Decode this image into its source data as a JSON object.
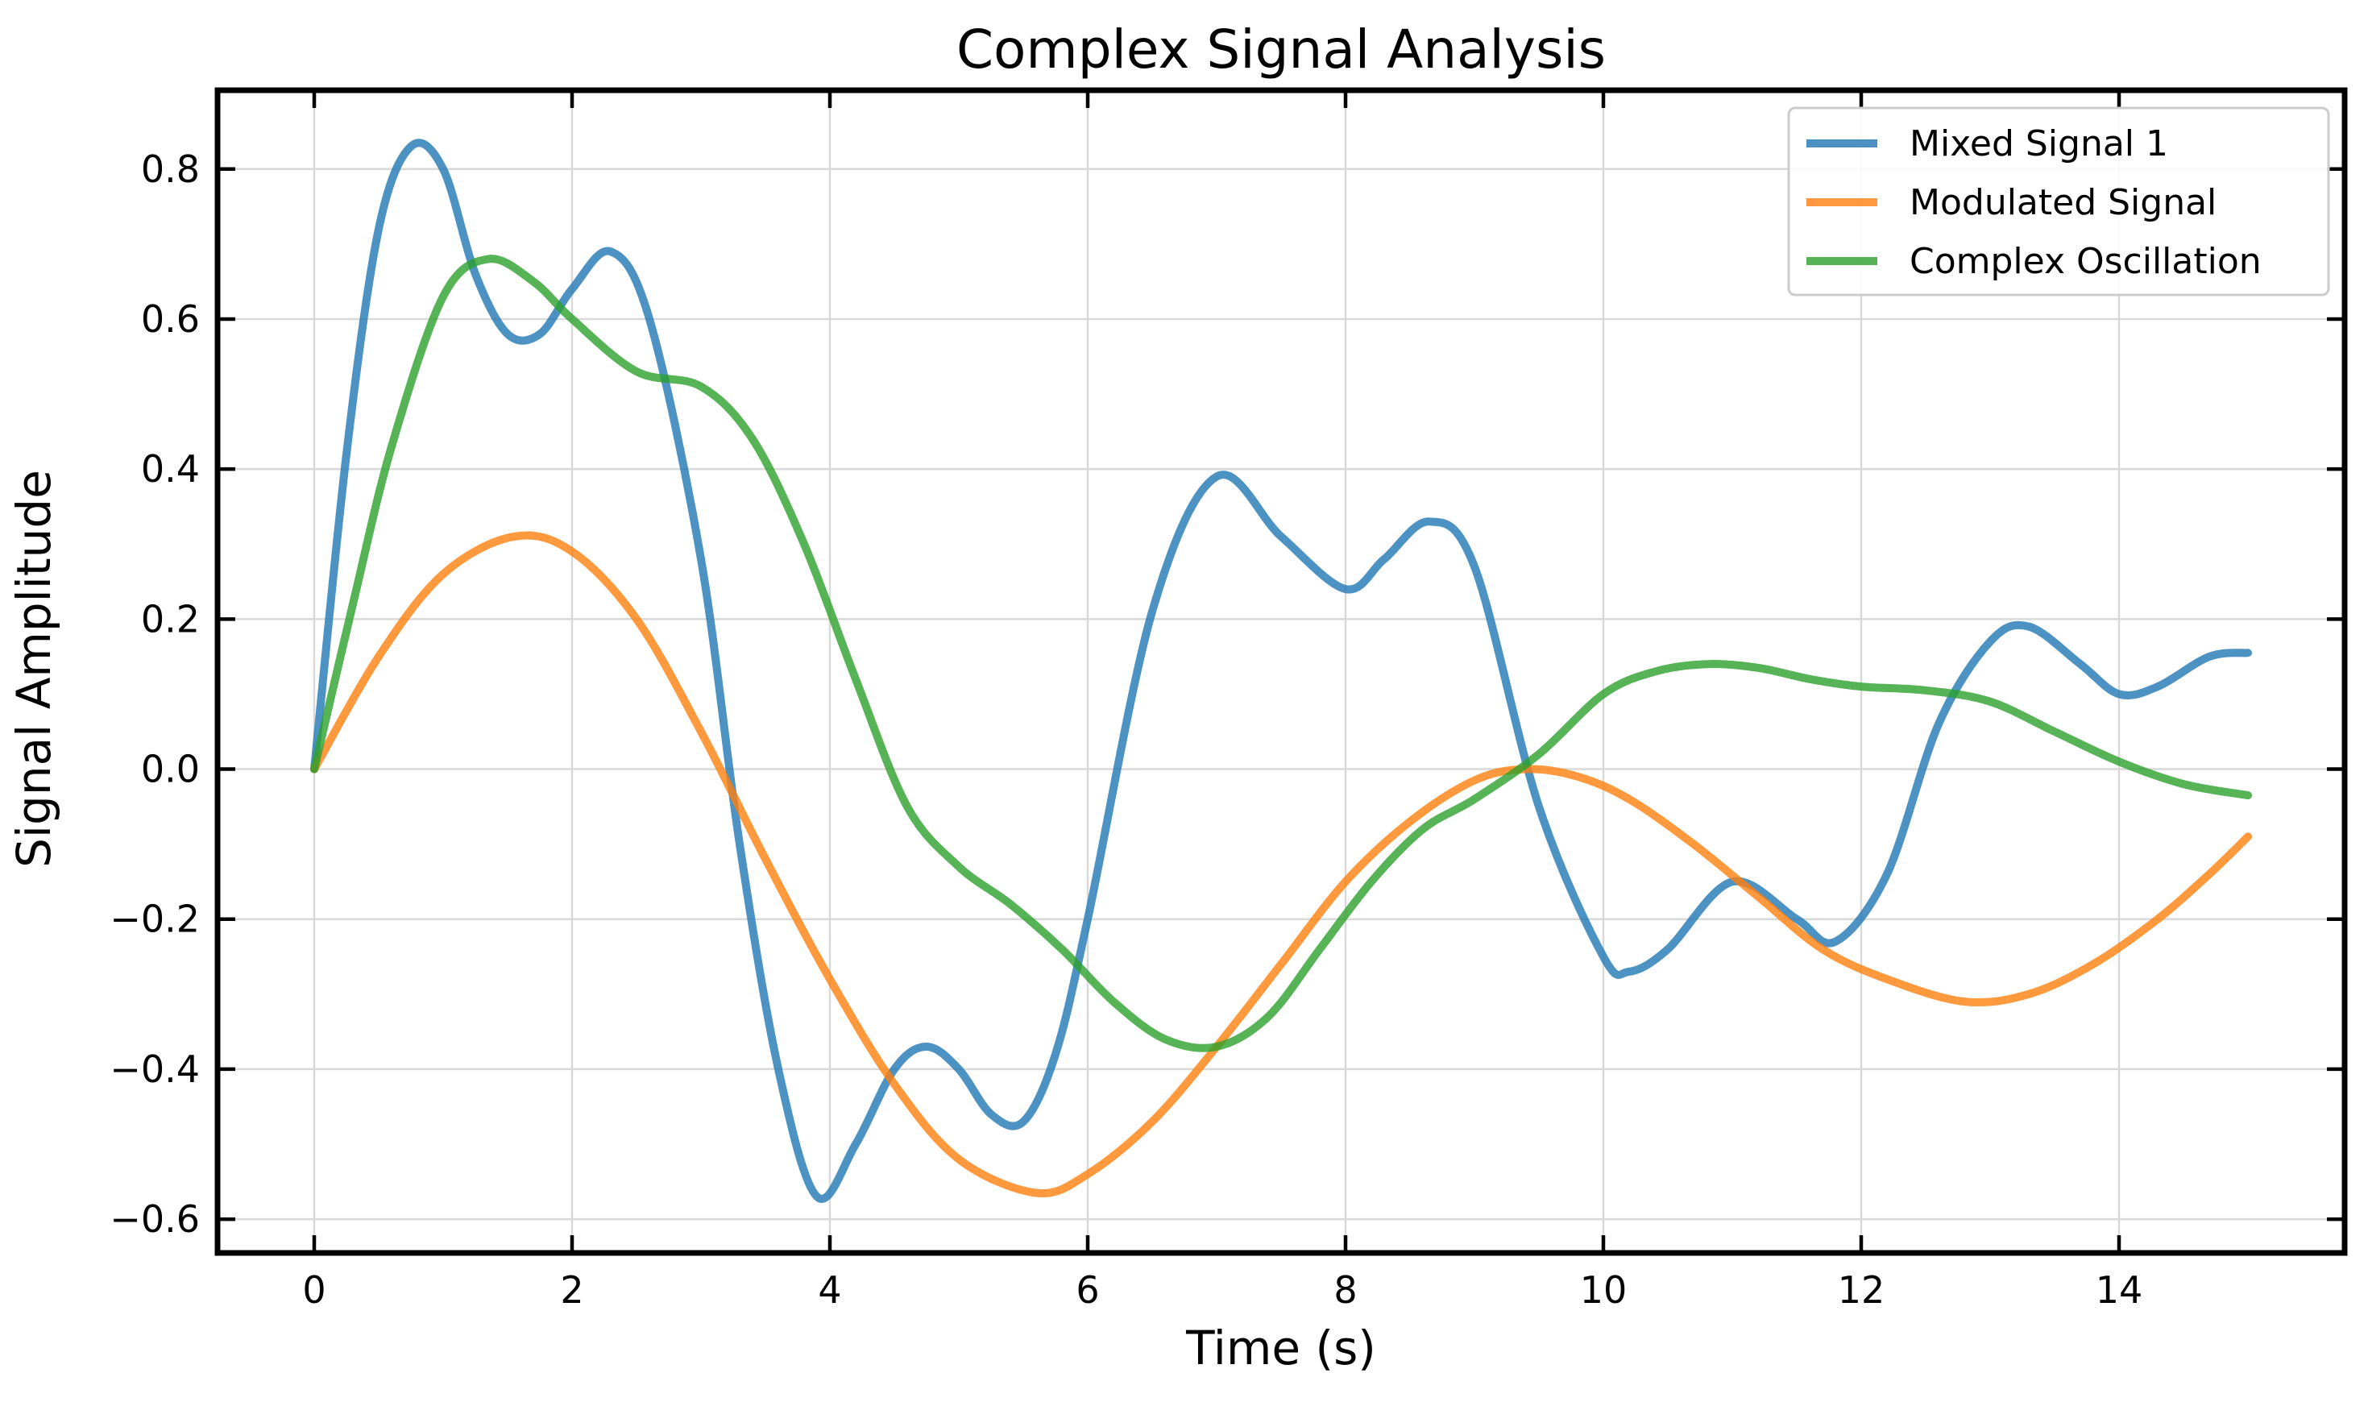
{
  "chart_data": {
    "type": "line",
    "title": "Complex Signal Analysis",
    "xlabel": "Time (s)",
    "ylabel": "Signal Amplitude",
    "xlim": [
      -0.75,
      15.75
    ],
    "ylim": [
      -0.645,
      0.905
    ],
    "xticks": [
      0,
      2,
      4,
      6,
      8,
      10,
      12,
      14
    ],
    "yticks": [
      -0.6,
      -0.4,
      -0.2,
      0.0,
      0.2,
      0.4,
      0.6,
      0.8
    ],
    "ytick_labels": [
      "−0.6",
      "−0.4",
      "−0.2",
      "0.0",
      "0.2",
      "0.4",
      "0.6",
      "0.8"
    ],
    "grid": true,
    "legend": "top-right",
    "series": [
      {
        "name": "Mixed Signal 1",
        "color": "#1f77b4",
        "x": [
          0,
          0.25,
          0.5,
          0.75,
          1.0,
          1.25,
          1.5,
          1.75,
          2.0,
          2.3,
          2.6,
          3.0,
          3.3,
          3.6,
          3.9,
          4.2,
          4.5,
          4.75,
          5.0,
          5.25,
          5.5,
          5.75,
          6.0,
          6.5,
          7.0,
          7.5,
          8.0,
          8.3,
          8.65,
          9.0,
          9.5,
          10.0,
          10.2,
          10.5,
          11.0,
          11.5,
          11.8,
          12.2,
          12.6,
          13.0,
          13.3,
          13.7,
          14.0,
          14.3,
          14.7,
          15.0
        ],
        "y": [
          0.0,
          0.42,
          0.72,
          0.83,
          0.8,
          0.66,
          0.58,
          0.58,
          0.64,
          0.69,
          0.6,
          0.28,
          -0.1,
          -0.4,
          -0.57,
          -0.5,
          -0.4,
          -0.37,
          -0.4,
          -0.46,
          -0.47,
          -0.38,
          -0.2,
          0.21,
          0.39,
          0.31,
          0.24,
          0.28,
          0.33,
          0.27,
          -0.05,
          -0.25,
          -0.27,
          -0.24,
          -0.15,
          -0.2,
          -0.23,
          -0.14,
          0.06,
          0.17,
          0.19,
          0.14,
          0.1,
          0.11,
          0.15,
          0.155
        ]
      },
      {
        "name": "Modulated Signal",
        "color": "#ff7f0e",
        "x": [
          0,
          0.5,
          1.0,
          1.55,
          2.0,
          2.5,
          3.0,
          3.5,
          4.0,
          4.5,
          5.0,
          5.6,
          6.0,
          6.5,
          7.0,
          7.5,
          8.0,
          8.5,
          9.0,
          9.4,
          9.8,
          10.2,
          10.7,
          11.2,
          11.7,
          12.2,
          12.8,
          13.3,
          13.8,
          14.3,
          14.7,
          15.0
        ],
        "y": [
          0.0,
          0.15,
          0.26,
          0.31,
          0.29,
          0.2,
          0.05,
          -0.12,
          -0.28,
          -0.42,
          -0.52,
          -0.565,
          -0.54,
          -0.47,
          -0.37,
          -0.26,
          -0.15,
          -0.07,
          -0.015,
          0.0,
          -0.01,
          -0.04,
          -0.1,
          -0.17,
          -0.24,
          -0.28,
          -0.31,
          -0.3,
          -0.26,
          -0.2,
          -0.14,
          -0.09
        ]
      },
      {
        "name": "Complex Oscillation",
        "color": "#2ca02c",
        "x": [
          0,
          0.3,
          0.6,
          1.0,
          1.35,
          1.7,
          2.0,
          2.5,
          3.0,
          3.4,
          3.8,
          4.2,
          4.6,
          5.0,
          5.4,
          5.8,
          6.2,
          6.6,
          7.0,
          7.4,
          7.8,
          8.2,
          8.6,
          9.0,
          9.5,
          10.0,
          10.4,
          10.8,
          11.2,
          11.6,
          12.0,
          12.5,
          13.0,
          13.5,
          14.0,
          14.5,
          15.0
        ],
        "y": [
          0.0,
          0.22,
          0.43,
          0.63,
          0.68,
          0.65,
          0.6,
          0.53,
          0.51,
          0.44,
          0.3,
          0.12,
          -0.05,
          -0.13,
          -0.18,
          -0.24,
          -0.31,
          -0.36,
          -0.37,
          -0.33,
          -0.24,
          -0.15,
          -0.08,
          -0.04,
          0.02,
          0.1,
          0.13,
          0.14,
          0.135,
          0.12,
          0.11,
          0.105,
          0.09,
          0.05,
          0.01,
          -0.02,
          -0.035
        ]
      }
    ]
  }
}
